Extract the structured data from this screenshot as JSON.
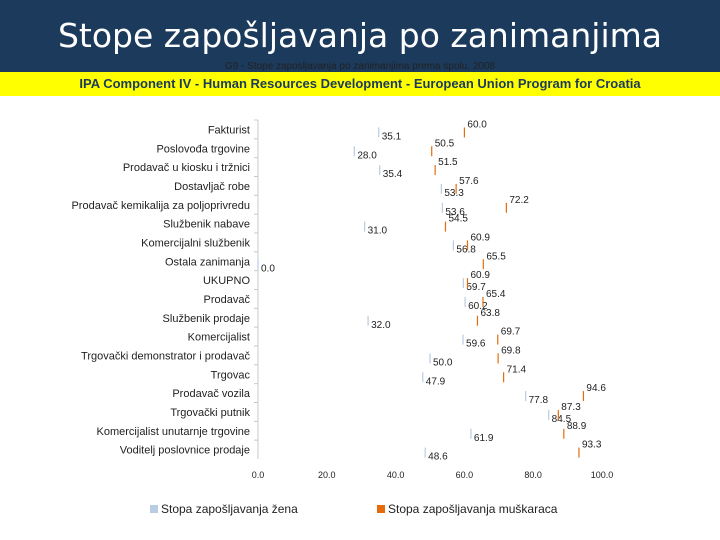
{
  "header": {
    "title": "Stope zapošljavanja po zanimanjima",
    "subtitle": "G9 - Stope zaposljavanja po zanimanjima prema spolu, 2008",
    "banner": "IPA Component IV - Human Resources Development - European Union Program for Croatia"
  },
  "colors": {
    "header_bg": "#1b3a5c",
    "banner_bg": "#ffff00",
    "women": "#b8cce4",
    "men": "#e46c0a",
    "axis": "#c8c8c8"
  },
  "chart_data": {
    "type": "bar",
    "orientation": "horizontal",
    "xlim": [
      0,
      100
    ],
    "x_ticks": [
      "0.0",
      "20.0",
      "40.0",
      "60.0",
      "80.0",
      "100.0"
    ],
    "categories": [
      "Fakturist",
      "Poslovođa trgovine",
      "Prodavač u kiosku i tržnici",
      "Dostavljač robe",
      "Prodavač kemikalija za poljoprivredu",
      "Službenik nabave",
      "Komercijalni službenik",
      "Ostala zanimanja",
      "UKUPNO",
      "Prodavač",
      "Službenik prodaje",
      "Komercijalist",
      "Trgovački demonstrator i prodavač",
      "Trgovac",
      "Prodavač vozila",
      "Trgovački putnik",
      "Komercijalist unutarnje trgovine",
      "Voditelj poslovnice prodaje"
    ],
    "series": [
      {
        "name": "Stopa zapošljavanja žena",
        "values": [
          35.1,
          28.0,
          35.4,
          53.3,
          53.6,
          31.0,
          56.8,
          0.0,
          59.7,
          60.2,
          32.0,
          59.6,
          50.0,
          47.9,
          77.8,
          84.5,
          61.9,
          48.6
        ]
      },
      {
        "name": "Stopa zapošljavanja muškaraca",
        "values": [
          60.0,
          50.5,
          51.5,
          57.6,
          72.2,
          54.5,
          60.9,
          65.5,
          60.9,
          65.4,
          63.8,
          69.7,
          69.8,
          71.4,
          94.6,
          87.3,
          88.9,
          93.3
        ]
      }
    ],
    "legend": "bottom"
  }
}
